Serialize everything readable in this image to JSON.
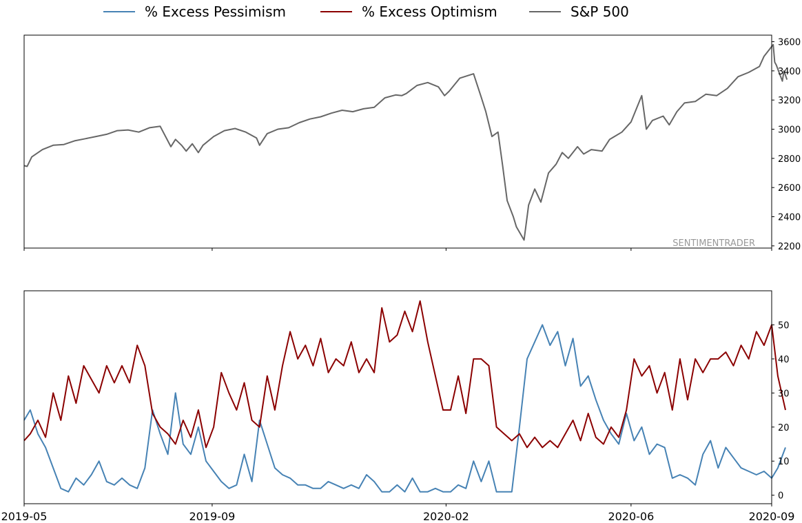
{
  "legend": [
    {
      "label": "% Excess Pessimism",
      "color": "#4682b4"
    },
    {
      "label": "% Excess Optimism",
      "color": "#8b0000"
    },
    {
      "label": "S&P 500",
      "color": "#666666"
    }
  ],
  "watermark": "SENTIMENTRADER",
  "chart_data": [
    {
      "type": "line",
      "title": "",
      "xlabel": "",
      "ylabel": "",
      "x_range": [
        "2019-05-01",
        "2020-09-01"
      ],
      "ylim": [
        2185,
        3645
      ],
      "y_axis_side": "right",
      "yticks": [
        2200,
        2400,
        2600,
        2800,
        3000,
        3200,
        3400,
        3600
      ],
      "series": [
        {
          "name": "S&P 500",
          "color": "#666666",
          "x": [
            "2019-05-01",
            "2019-05-03",
            "2019-05-06",
            "2019-05-13",
            "2019-05-20",
            "2019-05-27",
            "2019-06-03",
            "2019-06-10",
            "2019-06-17",
            "2019-06-24",
            "2019-07-01",
            "2019-07-08",
            "2019-07-15",
            "2019-07-22",
            "2019-07-29",
            "2019-08-05",
            "2019-08-08",
            "2019-08-12",
            "2019-08-15",
            "2019-08-19",
            "2019-08-23",
            "2019-08-26",
            "2019-09-02",
            "2019-09-09",
            "2019-09-16",
            "2019-09-23",
            "2019-09-30",
            "2019-10-02",
            "2019-10-07",
            "2019-10-14",
            "2019-10-21",
            "2019-10-28",
            "2019-11-04",
            "2019-11-11",
            "2019-11-18",
            "2019-11-25",
            "2019-12-02",
            "2019-12-09",
            "2019-12-16",
            "2019-12-23",
            "2019-12-30",
            "2020-01-03",
            "2020-01-06",
            "2020-01-13",
            "2020-01-20",
            "2020-01-27",
            "2020-01-31",
            "2020-02-03",
            "2020-02-10",
            "2020-02-19",
            "2020-02-24",
            "2020-02-27",
            "2020-03-02",
            "2020-03-06",
            "2020-03-09",
            "2020-03-12",
            "2020-03-16",
            "2020-03-18",
            "2020-03-23",
            "2020-03-26",
            "2020-03-30",
            "2020-04-03",
            "2020-04-08",
            "2020-04-13",
            "2020-04-17",
            "2020-04-21",
            "2020-04-27",
            "2020-05-01",
            "2020-05-06",
            "2020-05-13",
            "2020-05-18",
            "2020-05-26",
            "2020-06-01",
            "2020-06-08",
            "2020-06-11",
            "2020-06-15",
            "2020-06-22",
            "2020-06-26",
            "2020-07-01",
            "2020-07-06",
            "2020-07-13",
            "2020-07-20",
            "2020-07-27",
            "2020-08-03",
            "2020-08-10",
            "2020-08-17",
            "2020-08-24",
            "2020-08-27",
            "2020-09-02",
            "2020-09-03",
            "2020-09-04",
            "2020-09-08",
            "2020-09-09",
            "2020-09-11"
          ],
          "values": [
            2750,
            2745,
            2810,
            2860,
            2890,
            2895,
            2920,
            2935,
            2950,
            2965,
            2990,
            2995,
            2980,
            3010,
            3020,
            2880,
            2930,
            2890,
            2850,
            2900,
            2840,
            2890,
            2950,
            2990,
            3005,
            2980,
            2940,
            2890,
            2970,
            3000,
            3010,
            3045,
            3070,
            3085,
            3110,
            3130,
            3120,
            3140,
            3150,
            3215,
            3235,
            3230,
            3245,
            3300,
            3320,
            3290,
            3230,
            3260,
            3350,
            3380,
            3220,
            3120,
            2950,
            2980,
            2750,
            2510,
            2400,
            2330,
            2240,
            2480,
            2590,
            2500,
            2700,
            2760,
            2840,
            2800,
            2880,
            2830,
            2860,
            2850,
            2930,
            2980,
            3050,
            3230,
            3000,
            3060,
            3090,
            3030,
            3120,
            3180,
            3190,
            3240,
            3230,
            3280,
            3360,
            3390,
            3430,
            3500,
            3580,
            3460,
            3440,
            3330,
            3400,
            3340
          ]
        }
      ]
    },
    {
      "type": "line",
      "title": "",
      "xlabel": "",
      "ylabel": "",
      "x_range": [
        "2019-05-01",
        "2020-09-01"
      ],
      "ylim": [
        -2.5,
        60
      ],
      "y_axis_side": "right",
      "yticks": [
        0,
        10,
        20,
        30,
        40,
        50
      ],
      "xtick_labels": [
        "2019-05",
        "2019-09",
        "2020-02",
        "2020-06",
        "2020-09"
      ],
      "xtick_dates": [
        "2019-05-01",
        "2019-09-01",
        "2020-02-01",
        "2020-06-01",
        "2020-09-01"
      ],
      "series": [
        {
          "name": "% Excess Pessimism",
          "color": "#4682b4",
          "x": [
            "2019-05-01",
            "2019-05-05",
            "2019-05-10",
            "2019-05-15",
            "2019-05-20",
            "2019-05-25",
            "2019-05-30",
            "2019-06-04",
            "2019-06-09",
            "2019-06-14",
            "2019-06-19",
            "2019-06-24",
            "2019-06-29",
            "2019-07-04",
            "2019-07-09",
            "2019-07-14",
            "2019-07-19",
            "2019-07-24",
            "2019-07-29",
            "2019-08-03",
            "2019-08-08",
            "2019-08-13",
            "2019-08-18",
            "2019-08-23",
            "2019-08-28",
            "2019-09-02",
            "2019-09-07",
            "2019-09-12",
            "2019-09-17",
            "2019-09-22",
            "2019-09-27",
            "2019-10-02",
            "2019-10-07",
            "2019-10-12",
            "2019-10-17",
            "2019-10-22",
            "2019-10-27",
            "2019-11-01",
            "2019-11-06",
            "2019-11-11",
            "2019-11-16",
            "2019-11-21",
            "2019-11-26",
            "2019-12-01",
            "2019-12-06",
            "2019-12-11",
            "2019-12-16",
            "2019-12-21",
            "2019-12-26",
            "2019-12-31",
            "2020-01-05",
            "2020-01-10",
            "2020-01-15",
            "2020-01-20",
            "2020-01-25",
            "2020-01-30",
            "2020-02-04",
            "2020-02-09",
            "2020-02-14",
            "2020-02-19",
            "2020-02-24",
            "2020-02-29",
            "2020-03-05",
            "2020-03-10",
            "2020-03-15",
            "2020-03-20",
            "2020-03-25",
            "2020-03-30",
            "2020-04-04",
            "2020-04-09",
            "2020-04-14",
            "2020-04-19",
            "2020-04-24",
            "2020-04-29",
            "2020-05-04",
            "2020-05-09",
            "2020-05-14",
            "2020-05-19",
            "2020-05-24",
            "2020-05-29",
            "2020-06-03",
            "2020-06-08",
            "2020-06-13",
            "2020-06-18",
            "2020-06-23",
            "2020-06-28",
            "2020-07-03",
            "2020-07-08",
            "2020-07-13",
            "2020-07-18",
            "2020-07-23",
            "2020-07-28",
            "2020-08-02",
            "2020-08-07",
            "2020-08-12",
            "2020-08-17",
            "2020-08-22",
            "2020-08-27",
            "2020-09-01",
            "2020-09-05",
            "2020-09-10"
          ],
          "values": [
            22,
            25,
            18,
            14,
            8,
            2,
            1,
            5,
            3,
            6,
            10,
            4,
            3,
            5,
            3,
            2,
            8,
            25,
            18,
            12,
            30,
            15,
            12,
            20,
            10,
            7,
            4,
            2,
            3,
            12,
            4,
            22,
            15,
            8,
            6,
            5,
            3,
            3,
            2,
            2,
            4,
            3,
            2,
            3,
            2,
            6,
            4,
            1,
            1,
            3,
            1,
            5,
            1,
            1,
            2,
            1,
            1,
            3,
            2,
            10,
            4,
            10,
            1,
            1,
            1,
            20,
            40,
            45,
            50,
            44,
            48,
            38,
            46,
            32,
            35,
            28,
            22,
            18,
            15,
            24,
            16,
            20,
            12,
            15,
            14,
            5,
            6,
            5,
            3,
            12,
            16,
            8,
            14,
            11,
            8,
            7,
            6,
            7,
            5,
            8,
            14
          ]
        },
        {
          "name": "% Excess Optimism",
          "color": "#8b0000",
          "x": [
            "2019-05-01",
            "2019-05-05",
            "2019-05-10",
            "2019-05-15",
            "2019-05-20",
            "2019-05-25",
            "2019-05-30",
            "2019-06-04",
            "2019-06-09",
            "2019-06-14",
            "2019-06-19",
            "2019-06-24",
            "2019-06-29",
            "2019-07-04",
            "2019-07-09",
            "2019-07-14",
            "2019-07-19",
            "2019-07-24",
            "2019-07-29",
            "2019-08-03",
            "2019-08-08",
            "2019-08-13",
            "2019-08-18",
            "2019-08-23",
            "2019-08-28",
            "2019-09-02",
            "2019-09-07",
            "2019-09-12",
            "2019-09-17",
            "2019-09-22",
            "2019-09-27",
            "2019-10-02",
            "2019-10-07",
            "2019-10-12",
            "2019-10-17",
            "2019-10-22",
            "2019-10-27",
            "2019-11-01",
            "2019-11-06",
            "2019-11-11",
            "2019-11-16",
            "2019-11-21",
            "2019-11-26",
            "2019-12-01",
            "2019-12-06",
            "2019-12-11",
            "2019-12-16",
            "2019-12-21",
            "2019-12-26",
            "2019-12-31",
            "2020-01-05",
            "2020-01-10",
            "2020-01-15",
            "2020-01-20",
            "2020-01-25",
            "2020-01-30",
            "2020-02-04",
            "2020-02-09",
            "2020-02-14",
            "2020-02-19",
            "2020-02-24",
            "2020-02-29",
            "2020-03-05",
            "2020-03-10",
            "2020-03-15",
            "2020-03-20",
            "2020-03-25",
            "2020-03-30",
            "2020-04-04",
            "2020-04-09",
            "2020-04-14",
            "2020-04-19",
            "2020-04-24",
            "2020-04-29",
            "2020-05-04",
            "2020-05-09",
            "2020-05-14",
            "2020-05-19",
            "2020-05-24",
            "2020-05-29",
            "2020-06-03",
            "2020-06-08",
            "2020-06-13",
            "2020-06-18",
            "2020-06-23",
            "2020-06-28",
            "2020-07-03",
            "2020-07-08",
            "2020-07-13",
            "2020-07-18",
            "2020-07-23",
            "2020-07-28",
            "2020-08-02",
            "2020-08-07",
            "2020-08-12",
            "2020-08-17",
            "2020-08-22",
            "2020-08-27",
            "2020-09-01",
            "2020-09-05",
            "2020-09-10"
          ],
          "values": [
            16,
            18,
            22,
            17,
            30,
            22,
            35,
            27,
            38,
            34,
            30,
            38,
            33,
            38,
            33,
            44,
            38,
            24,
            20,
            18,
            15,
            22,
            17,
            25,
            14,
            20,
            36,
            30,
            25,
            33,
            22,
            20,
            35,
            25,
            38,
            48,
            40,
            44,
            38,
            46,
            36,
            40,
            38,
            45,
            36,
            40,
            36,
            55,
            45,
            47,
            54,
            48,
            57,
            45,
            35,
            25,
            25,
            35,
            24,
            40,
            40,
            38,
            20,
            18,
            16,
            18,
            14,
            17,
            14,
            16,
            14,
            18,
            22,
            16,
            24,
            17,
            15,
            20,
            17,
            25,
            40,
            35,
            38,
            30,
            36,
            25,
            40,
            28,
            40,
            36,
            40,
            40,
            42,
            38,
            44,
            40,
            48,
            44,
            50,
            35,
            25
          ]
        }
      ]
    }
  ]
}
